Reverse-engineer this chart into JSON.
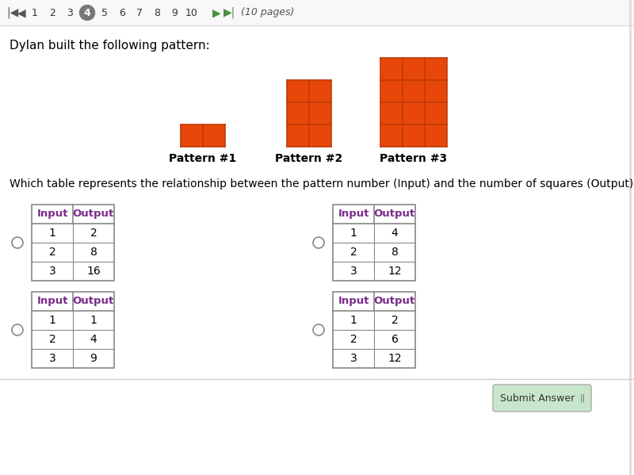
{
  "bg_color": "#ffffff",
  "nav_numbers": [
    "1",
    "2",
    "3",
    "4",
    "5",
    "6",
    "7",
    "8",
    "9",
    "10"
  ],
  "nav_active": 3,
  "title_text": "Dylan built the following pattern:",
  "question_text": "Which table represents the relationship between the pattern number (Input) and the number of squares (Output)?",
  "pattern_label1": "Pattern #1",
  "pattern_label2": "Pattern #2",
  "pattern_label3": "Pattern #3",
  "orange_color": "#E8470A",
  "orange_dark": "#c03a06",
  "table_header_color": "#7B2D8B",
  "table_border_color": "#888888",
  "tables": [
    {
      "input": [
        1,
        2,
        3
      ],
      "output": [
        2,
        8,
        16
      ]
    },
    {
      "input": [
        1,
        2,
        3
      ],
      "output": [
        4,
        8,
        12
      ]
    },
    {
      "input": [
        1,
        2,
        3
      ],
      "output": [
        1,
        4,
        9
      ]
    },
    {
      "input": [
        1,
        2,
        3
      ],
      "output": [
        2,
        6,
        12
      ]
    }
  ],
  "submit_btn_color": "#c8e6c9",
  "submit_btn_text": "Submit Answer",
  "pages_text": "(10 pages)",
  "nav_arrow_color": "#4a9040",
  "nav_bg": "#f8f8f8"
}
